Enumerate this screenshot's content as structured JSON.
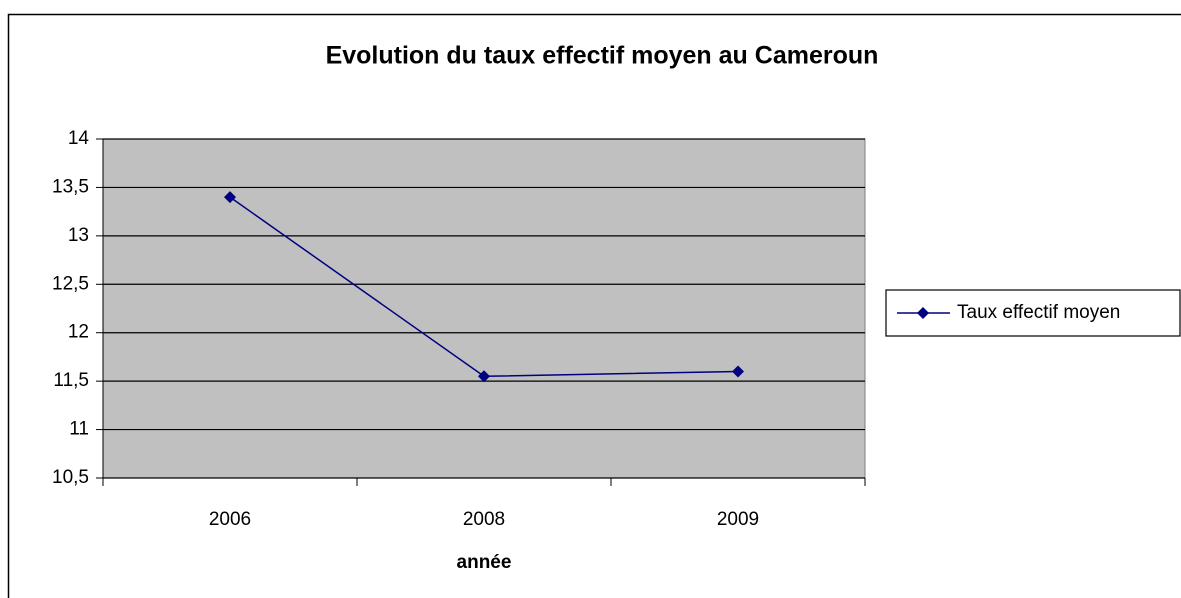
{
  "chart_data": {
    "type": "line",
    "title": "Evolution du taux effectif moyen au Cameroun",
    "x_label": "année",
    "categories": [
      "2006",
      "2008",
      "2009"
    ],
    "series": [
      {
        "name": "Taux effectif moyen",
        "color": "#000080",
        "values": [
          13.4,
          11.55,
          11.6
        ]
      }
    ],
    "ylim": [
      10.5,
      14
    ],
    "yticks": [
      {
        "value": 10.5,
        "label": "10,5"
      },
      11,
      {
        "value": 11.5,
        "label": "11,5"
      },
      12,
      {
        "value": 12.5,
        "label": "12,5"
      },
      13,
      {
        "value": 13.5,
        "label": "13,5"
      },
      14
    ],
    "grid": true,
    "legend": "right",
    "plot_background": "#c0c0c0"
  }
}
